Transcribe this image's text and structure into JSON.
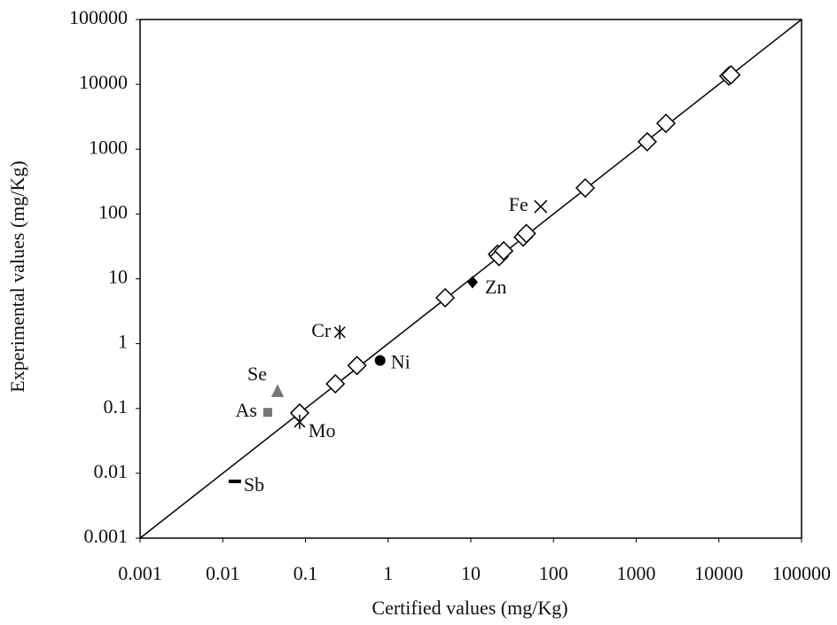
{
  "chart_data": {
    "type": "scatter",
    "x_label": "Certified values (mg/Kg)",
    "y_label": "Experimental values (mg/Kg)",
    "xscale": "log",
    "yscale": "log",
    "xlim": [
      0.001,
      100000
    ],
    "ylim": [
      0.001,
      100000
    ],
    "xticks": [
      0.001,
      0.01,
      0.1,
      1,
      10,
      100,
      1000,
      10000,
      100000
    ],
    "yticks": [
      0.001,
      0.01,
      0.1,
      1,
      10,
      100,
      1000,
      10000,
      100000
    ],
    "identity_line": true,
    "color": "#000000",
    "series": [
      {
        "marker": "diamond",
        "x": [
          0.085,
          0.23,
          0.42,
          4.9,
          21,
          22,
          25,
          43,
          47,
          242,
          1360,
          2290,
          13200,
          14000
        ],
        "y": [
          0.085,
          0.24,
          0.46,
          5.1,
          24,
          22,
          27,
          44,
          50,
          252,
          1300,
          2500,
          13400,
          14000
        ]
      }
    ],
    "labeled_points": [
      {
        "label": "Fe",
        "marker": "x",
        "x": 70,
        "y": 130
      },
      {
        "label": "Zn",
        "marker": "filled-diamond",
        "x": 10.5,
        "y": 8.9
      },
      {
        "label": "Cr",
        "marker": "star",
        "x": 0.26,
        "y": 1.5
      },
      {
        "label": "Ni",
        "marker": "circle",
        "x": 0.8,
        "y": 0.55
      },
      {
        "label": "Se",
        "marker": "triangle",
        "x": 0.046,
        "y": 0.18
      },
      {
        "label": "As",
        "marker": "square",
        "x": 0.035,
        "y": 0.087
      },
      {
        "label": "Mo",
        "marker": "star",
        "x": 0.085,
        "y": 0.062
      },
      {
        "label": "Sb",
        "marker": "dash",
        "x": 0.014,
        "y": 0.0075
      }
    ]
  }
}
